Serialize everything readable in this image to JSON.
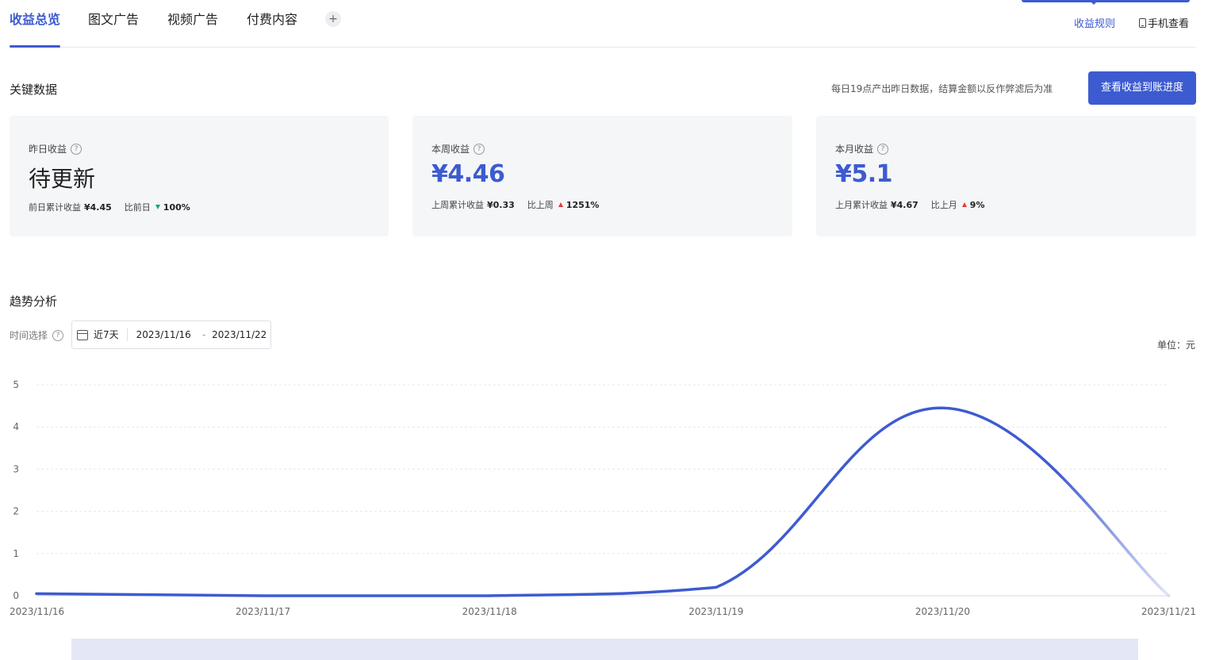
{
  "tabs": [
    {
      "label": "收益总览",
      "active": true
    },
    {
      "label": "图文广告",
      "active": false
    },
    {
      "label": "视频广告",
      "active": false
    },
    {
      "label": "付费内容",
      "active": false
    }
  ],
  "tab_add_label": "+",
  "header_links": {
    "rules": "收益规则",
    "mobile": "手机查看"
  },
  "key_data": {
    "title": "关键数据",
    "note": "每日19点产出昨日数据，结算金额以反作弊滤后为准",
    "button": "查看收益到账进度"
  },
  "cards": [
    {
      "label": "昨日收益",
      "value": "待更新",
      "prev_label": "前日累计收益",
      "prev_value": "¥4.45",
      "cmp_label": "比前日",
      "cmp_dir": "down",
      "cmp_value": "100%"
    },
    {
      "label": "本周收益",
      "value": "¥4.46",
      "prev_label": "上周累计收益",
      "prev_value": "¥0.33",
      "cmp_label": "比上周",
      "cmp_dir": "up",
      "cmp_value": "1251%"
    },
    {
      "label": "本月收益",
      "value": "¥5.1",
      "prev_label": "上月累计收益",
      "prev_value": "¥4.67",
      "cmp_label": "比上月",
      "cmp_dir": "up",
      "cmp_value": "9%"
    }
  ],
  "trend": {
    "title": "趋势分析",
    "time_label": "时间选择",
    "preset": "近7天",
    "date_start": "2023/11/16",
    "date_sep": "-",
    "date_end": "2023/11/22",
    "unit": "单位：元"
  },
  "chart_data": {
    "type": "line",
    "x": [
      "2023/11/16",
      "2023/11/17",
      "2023/11/18",
      "2023/11/19",
      "2023/11/20",
      "2023/11/21"
    ],
    "series": [
      {
        "values": [
          0.05,
          0.0,
          0.0,
          0.2,
          4.45,
          0.0
        ]
      }
    ],
    "ylim": [
      0,
      5
    ],
    "yticks": [
      0,
      1,
      2,
      3,
      4,
      5
    ],
    "grid": true,
    "line_color": "#3d5bd0"
  },
  "colors": {
    "accent": "#3d5bd0",
    "up": "#e03a3a",
    "down": "#1aa36f",
    "card_bg": "#f5f6f8"
  }
}
